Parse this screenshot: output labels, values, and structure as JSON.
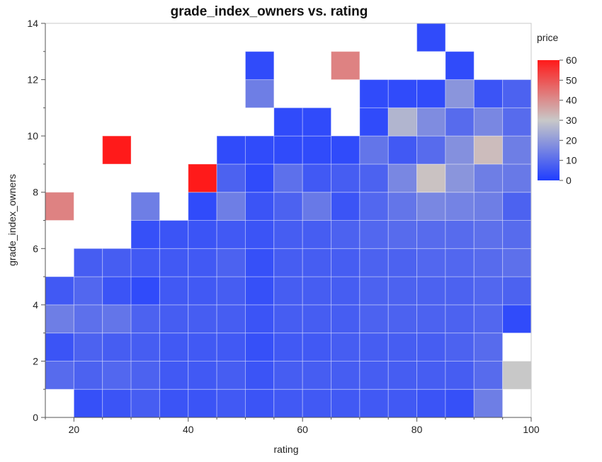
{
  "chart_data": {
    "type": "heatmap",
    "title": "grade_index_owners vs. rating",
    "xlabel": "rating",
    "ylabel": "grade_index_owners",
    "xlim": [
      15,
      100
    ],
    "ylim": [
      0,
      14
    ],
    "x_ticks": [
      20,
      40,
      60,
      80,
      100
    ],
    "y_ticks": [
      0,
      2,
      4,
      6,
      8,
      10,
      12,
      14
    ],
    "x_tick_labels": [
      "20",
      "40",
      "60",
      "80",
      "100"
    ],
    "y_tick_labels": [
      "0",
      "2",
      "4",
      "6",
      "8",
      "10",
      "12",
      "14"
    ],
    "grid": false,
    "legend": {
      "title": "price",
      "placement": "right",
      "range": [
        0,
        60
      ],
      "ticks": [
        0,
        10,
        20,
        30,
        40,
        50,
        60
      ],
      "tick_labels": [
        "0",
        "10",
        "20",
        "30",
        "40",
        "50",
        "60"
      ],
      "colors": {
        "low": "#1f3dff",
        "mid": "#c8c8c8",
        "high": "#ff1a1a"
      }
    },
    "bin_width_x": 5,
    "bin_height_y": 1,
    "columns": [
      15,
      20,
      25,
      30,
      35,
      40,
      45,
      50,
      55,
      60,
      65,
      70,
      75,
      80,
      85,
      90,
      95
    ],
    "rows": [
      {
        "y": 0,
        "values": [
          null,
          4,
          5,
          7,
          5,
          5,
          6,
          5,
          6,
          6,
          6,
          6,
          6,
          5,
          4,
          14,
          null
        ]
      },
      {
        "y": 1,
        "values": [
          10,
          8,
          9,
          8,
          6,
          6,
          7,
          5,
          7,
          7,
          7,
          7,
          7,
          7,
          7,
          10,
          30
        ]
      },
      {
        "y": 2,
        "values": [
          5,
          8,
          7,
          7,
          6,
          6,
          6,
          4,
          6,
          6,
          7,
          7,
          7,
          7,
          8,
          10,
          null
        ]
      },
      {
        "y": 3,
        "values": [
          14,
          11,
          12,
          8,
          7,
          7,
          7,
          5,
          7,
          7,
          7,
          8,
          8,
          8,
          8,
          9,
          3
        ]
      },
      {
        "y": 4,
        "values": [
          6,
          9,
          5,
          3,
          6,
          6,
          7,
          4,
          7,
          7,
          7,
          8,
          8,
          8,
          8,
          9,
          8
        ]
      },
      {
        "y": 5,
        "values": [
          null,
          7,
          7,
          6,
          6,
          6,
          8,
          4,
          7,
          7,
          7,
          8,
          8,
          9,
          9,
          10,
          11
        ]
      },
      {
        "y": 6,
        "values": [
          null,
          null,
          null,
          4,
          5,
          5,
          6,
          5,
          7,
          7,
          8,
          9,
          10,
          10,
          10,
          11,
          10
        ]
      },
      {
        "y": 7,
        "values": [
          42,
          null,
          null,
          14,
          null,
          3,
          14,
          5,
          8,
          13,
          5,
          9,
          12,
          16,
          15,
          14,
          8
        ]
      },
      {
        "y": 8,
        "values": [
          null,
          null,
          null,
          null,
          null,
          60,
          8,
          3,
          11,
          6,
          7,
          8,
          16,
          31,
          19,
          14,
          13
        ]
      },
      {
        "y": 9,
        "values": [
          null,
          null,
          60,
          null,
          null,
          null,
          3,
          3,
          3,
          3,
          3,
          12,
          6,
          10,
          18,
          32,
          14
        ]
      },
      {
        "y": 10,
        "values": [
          null,
          null,
          null,
          null,
          null,
          null,
          null,
          null,
          3,
          3,
          null,
          3,
          26,
          17,
          10,
          16,
          10
        ]
      },
      {
        "y": 11,
        "values": [
          null,
          null,
          null,
          null,
          null,
          null,
          null,
          14,
          null,
          null,
          null,
          3,
          3,
          3,
          19,
          5,
          8
        ]
      },
      {
        "y": 12,
        "values": [
          null,
          null,
          null,
          null,
          null,
          null,
          null,
          3,
          null,
          null,
          42,
          null,
          null,
          null,
          3,
          null,
          null
        ]
      },
      {
        "y": 13,
        "values": [
          null,
          null,
          null,
          null,
          null,
          null,
          null,
          null,
          null,
          null,
          null,
          null,
          null,
          3,
          null,
          null,
          null
        ]
      }
    ]
  }
}
